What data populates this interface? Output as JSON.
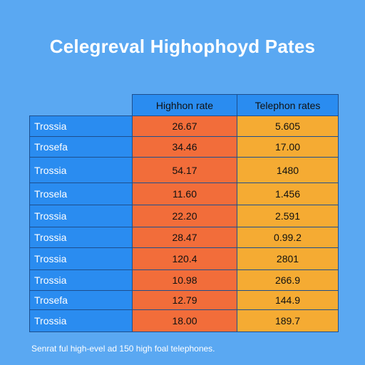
{
  "title": "Celegreval Highophoyd Pates",
  "chart_data": {
    "type": "table",
    "columns": [
      "",
      "Highhon rate",
      "Telephon rates"
    ],
    "rows": [
      {
        "label": "Trossia",
        "values": [
          "26.67",
          "5.605"
        ]
      },
      {
        "label": "Trosefa",
        "values": [
          "34.46",
          "17.00"
        ]
      },
      {
        "label": "Trossia",
        "values": [
          "54.17",
          "1480"
        ]
      },
      {
        "label": "Trosela",
        "values": [
          "11.60",
          "1.456"
        ]
      },
      {
        "label": "Trossia",
        "values": [
          "22.20",
          "2.591"
        ]
      },
      {
        "label": "Trossia",
        "values": [
          "28.47",
          "0.99.2"
        ]
      },
      {
        "label": "Trossia",
        "values": [
          "120.4",
          "2801"
        ]
      },
      {
        "label": "Trossia",
        "values": [
          "10.98",
          "266.9"
        ]
      },
      {
        "label": "Trosefa",
        "values": [
          "12.79",
          "144.9"
        ]
      },
      {
        "label": "Trossia",
        "values": [
          "18.00",
          "189.7"
        ]
      }
    ]
  },
  "footer": "Senrat ful high-evel ad 150 high foal telephones.",
  "colors": {
    "background": "#5aa8f2",
    "label_column": "#2a8cf0",
    "highhon_column": "#f26d3a",
    "telephon_column": "#f5ab33"
  }
}
